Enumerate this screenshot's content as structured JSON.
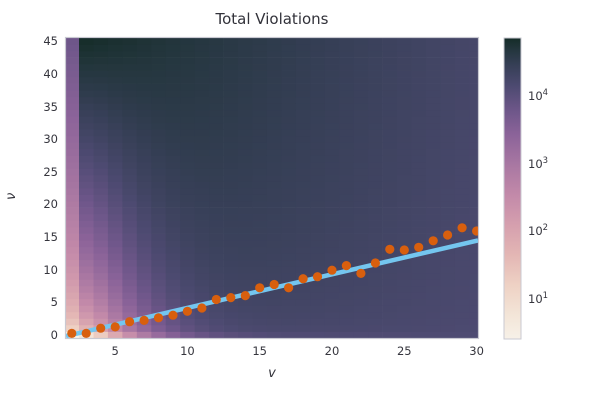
{
  "chart_data": {
    "type": "heatmap",
    "title": "Total Violations",
    "xlabel": "v",
    "ylabel": "ν",
    "xlim": [
      1.6,
      30.1
    ],
    "ylim": [
      -0.5,
      45.5
    ],
    "x_ticks": [
      5,
      10,
      15,
      20,
      25,
      30
    ],
    "y_ticks": [
      0,
      5,
      10,
      15,
      20,
      25,
      30,
      35,
      40,
      45
    ],
    "grid": false,
    "heatmap": {
      "x_values_range": [
        2,
        30
      ],
      "y_values_range": [
        0,
        45
      ],
      "color_scale": "log10",
      "log_vmin": 0.42,
      "log_vmax": 4.88,
      "value_model": {
        "description": "log10(count) per cell: bottom value rises with v, each column darkens toward high nu; column v=2 is globally lighter",
        "bottom_far": 4.15,
        "bottom_start": 0.8,
        "bottom_scale": 4.0,
        "bottom_shape": 1.3,
        "top_start": 4.85,
        "top_slope": 0.022,
        "rise_exponent": 0.38,
        "special_column": {
          "v": 2,
          "log_bottom": 0.45,
          "log_top": 3.8
        }
      }
    },
    "colorbar": {
      "tick_exponents": [
        1,
        2,
        3,
        4
      ],
      "tick_base": "10",
      "position": "right"
    },
    "line": {
      "name": "fit-line",
      "x": [
        1.6,
        30.1
      ],
      "y": [
        -0.21,
        14.47
      ],
      "color": "#74c6ef",
      "width": 4.5
    },
    "scatter": {
      "name": "observed-points",
      "color": "#d85f0e",
      "radius": 4.6,
      "points": [
        [
          2,
          0.2
        ],
        [
          3,
          0.2
        ],
        [
          4,
          1.0
        ],
        [
          5,
          1.2
        ],
        [
          6,
          2.0
        ],
        [
          7,
          2.2
        ],
        [
          8,
          2.6
        ],
        [
          9,
          3.0
        ],
        [
          10,
          3.6
        ],
        [
          11,
          4.1
        ],
        [
          12,
          5.4
        ],
        [
          13,
          5.7
        ],
        [
          14,
          6.0
        ],
        [
          15,
          7.2
        ],
        [
          16,
          7.7
        ],
        [
          17,
          7.2
        ],
        [
          18,
          8.6
        ],
        [
          19,
          8.9
        ],
        [
          20,
          9.9
        ],
        [
          21,
          10.6
        ],
        [
          22,
          9.4
        ],
        [
          23,
          11.0
        ],
        [
          24,
          13.1
        ],
        [
          25,
          13.0
        ],
        [
          26,
          13.4
        ],
        [
          27,
          14.4
        ],
        [
          28,
          15.3
        ],
        [
          29,
          16.4
        ],
        [
          30,
          15.9
        ]
      ]
    },
    "colormap_stops": [
      [
        0.0,
        "#f7f1e8"
      ],
      [
        0.08,
        "#f3e5d8"
      ],
      [
        0.18,
        "#eed1c4"
      ],
      [
        0.28,
        "#e3b6b4"
      ],
      [
        0.38,
        "#d59fae"
      ],
      [
        0.48,
        "#c289a9"
      ],
      [
        0.58,
        "#a877a2"
      ],
      [
        0.68,
        "#8b6399"
      ],
      [
        0.76,
        "#6d5689"
      ],
      [
        0.84,
        "#4d4a71"
      ],
      [
        0.91,
        "#363f56"
      ],
      [
        0.96,
        "#24363e"
      ],
      [
        1.0,
        "#142c27"
      ]
    ],
    "colors": {
      "background": "#ffffff",
      "text": "#32323a",
      "plot_border": "#c9c9d2"
    }
  }
}
